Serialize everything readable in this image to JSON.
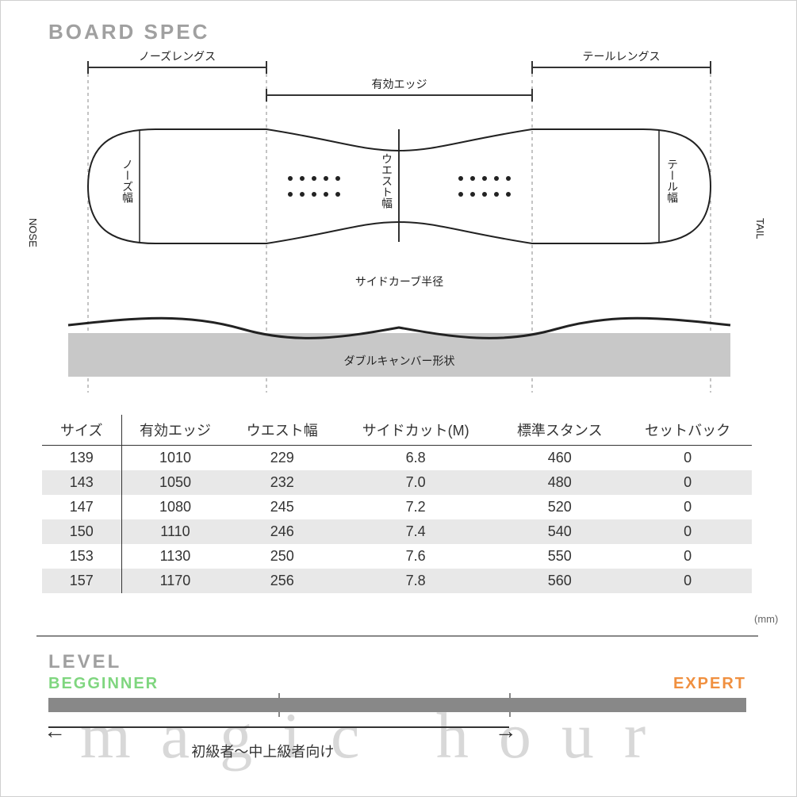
{
  "title": "BOARD SPEC",
  "diagram": {
    "nose_length": "ノーズレングス",
    "tail_length": "テールレングス",
    "effective_edge": "有効エッジ",
    "nose_width": "ノーズ幅",
    "waist_width": "ウエスト幅",
    "tail_width": "テール幅",
    "sidecut_radius": "サイドカーブ半径",
    "camber_shape": "ダブルキャンバー形状",
    "nose_label": "NOSE",
    "tail_label": "TAIL",
    "colors": {
      "line": "#333333",
      "dashed": "#888888",
      "band": "#c8c8c8",
      "bg": "#ffffff"
    }
  },
  "table": {
    "columns": [
      "サイズ",
      "有効エッジ",
      "ウエスト幅",
      "サイドカット(M)",
      "標準スタンス",
      "セットバック"
    ],
    "rows": [
      [
        "139",
        "1010",
        "229",
        "6.8",
        "460",
        "0"
      ],
      [
        "143",
        "1050",
        "232",
        "7.0",
        "480",
        "0"
      ],
      [
        "147",
        "1080",
        "245",
        "7.2",
        "520",
        "0"
      ],
      [
        "150",
        "1110",
        "246",
        "7.4",
        "540",
        "0"
      ],
      [
        "153",
        "1130",
        "250",
        "7.6",
        "550",
        "0"
      ],
      [
        "157",
        "1170",
        "256",
        "7.8",
        "560",
        "0"
      ]
    ],
    "unit": "(mm)",
    "alt_bg": "#e8e8e8"
  },
  "level": {
    "title": "LEVEL",
    "beginner": "BEGGINNER",
    "expert": "EXPERT",
    "beginner_color": "#7fd67f",
    "expert_color": "#f09040",
    "bar_color": "#888888",
    "range_label": "初級者～中上級者向け",
    "range_start_pct": 0,
    "range_end_pct": 66,
    "ticks_pct": [
      33,
      66
    ]
  },
  "watermark": "magic hour"
}
